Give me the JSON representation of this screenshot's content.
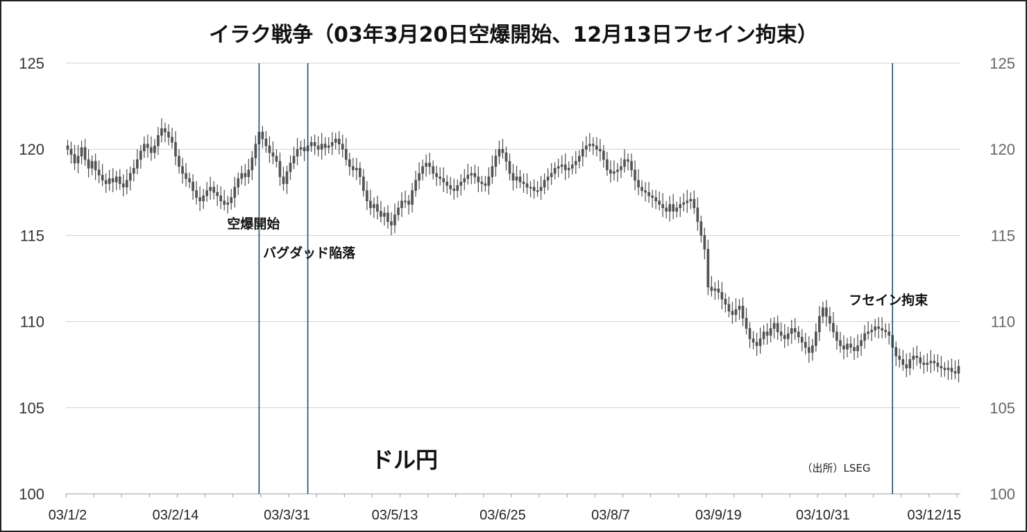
{
  "chart_data": {
    "type": "candlestick",
    "title": "イラク戦争（03年3月20日空爆開始、12月13日フセイン拘束）",
    "series_label": "ドル円",
    "source": "（出所）LSEG",
    "ylim": [
      100,
      125
    ],
    "yticks": [
      "100",
      "105",
      "110",
      "115",
      "120",
      "125"
    ],
    "xticks": [
      "03/1/2",
      "03/2/14",
      "03/3/31",
      "03/5/13",
      "03/6/25",
      "03/8/7",
      "03/9/19",
      "03/10/31",
      "03/12/15"
    ],
    "xtick_index": [
      0,
      31,
      63,
      94,
      125,
      156,
      187,
      217,
      249
    ],
    "events": [
      {
        "label": "空爆開始",
        "index": 55
      },
      {
        "label": "バグダッド陥落",
        "index": 69
      },
      {
        "label": "フセイン拘束",
        "index": 237
      }
    ],
    "grid": true,
    "total_days": 257,
    "prices": [
      120.0,
      119.7,
      119.2,
      119.6,
      120.1,
      119.4,
      118.9,
      119.3,
      118.8,
      118.5,
      118.2,
      118.0,
      118.3,
      118.1,
      118.4,
      118.0,
      117.8,
      118.2,
      118.6,
      118.9,
      119.4,
      119.9,
      120.3,
      120.1,
      119.8,
      120.2,
      120.8,
      121.2,
      121.0,
      120.7,
      120.4,
      119.6,
      119.0,
      118.6,
      118.3,
      118.1,
      117.6,
      117.2,
      117.0,
      117.3,
      117.6,
      117.8,
      117.5,
      117.3,
      117.0,
      116.8,
      116.9,
      117.2,
      117.8,
      118.3,
      118.6,
      118.4,
      118.8,
      119.5,
      120.3,
      121.0,
      120.6,
      120.2,
      119.8,
      119.6,
      119.3,
      118.4,
      118.0,
      118.7,
      119.2,
      119.6,
      120.0,
      120.1,
      119.9,
      120.2,
      120.4,
      120.2,
      120.0,
      120.3,
      120.1,
      120.2,
      120.4,
      120.6,
      120.3,
      120.0,
      119.4,
      119.0,
      118.8,
      118.9,
      118.4,
      117.6,
      117.0,
      116.6,
      116.8,
      116.4,
      116.1,
      116.3,
      115.8,
      115.6,
      116.2,
      116.6,
      117.0,
      117.0,
      116.8,
      117.6,
      118.2,
      118.6,
      119.0,
      119.2,
      119.0,
      118.6,
      118.4,
      118.3,
      118.1,
      117.9,
      117.7,
      117.6,
      117.9,
      118.1,
      118.3,
      118.5,
      118.6,
      118.4,
      118.1,
      118.0,
      117.9,
      118.4,
      119.0,
      119.6,
      120.0,
      119.8,
      119.3,
      118.6,
      118.2,
      118.4,
      118.1,
      118.0,
      117.8,
      117.8,
      117.6,
      117.6,
      117.8,
      118.2,
      118.4,
      118.6,
      118.9,
      119.0,
      119.1,
      118.8,
      118.9,
      119.1,
      119.3,
      119.6,
      120.0,
      120.2,
      120.3,
      120.2,
      120.0,
      119.9,
      119.4,
      118.8,
      118.6,
      118.7,
      118.8,
      119.0,
      119.4,
      119.3,
      118.8,
      118.2,
      117.8,
      117.6,
      117.5,
      117.3,
      117.2,
      117.0,
      116.8,
      116.6,
      116.4,
      116.8,
      116.4,
      116.6,
      116.8,
      116.9,
      117.0,
      117.1,
      116.6,
      115.8,
      115.0,
      114.2,
      112.0,
      111.8,
      111.9,
      111.7,
      111.3,
      111.0,
      110.6,
      110.4,
      110.7,
      110.9,
      110.2,
      109.6,
      109.0,
      108.8,
      108.6,
      109.0,
      109.4,
      109.2,
      109.6,
      109.9,
      109.4,
      109.2,
      109.0,
      109.3,
      109.6,
      109.4,
      109.1,
      108.8,
      108.5,
      108.2,
      108.6,
      109.4,
      110.3,
      110.8,
      110.3,
      109.9,
      109.4,
      108.9,
      108.6,
      108.4,
      108.7,
      108.5,
      108.3,
      108.6,
      108.9,
      109.3,
      109.4,
      109.5,
      109.7,
      109.6,
      109.5,
      109.4,
      109.2,
      108.5,
      108.0,
      107.8,
      107.5,
      107.3,
      107.8,
      108.0,
      107.9,
      107.6,
      107.5,
      107.6,
      107.7,
      107.6,
      107.4,
      107.3,
      107.2,
      107.3,
      107.1,
      107.0,
      107.4
    ]
  }
}
